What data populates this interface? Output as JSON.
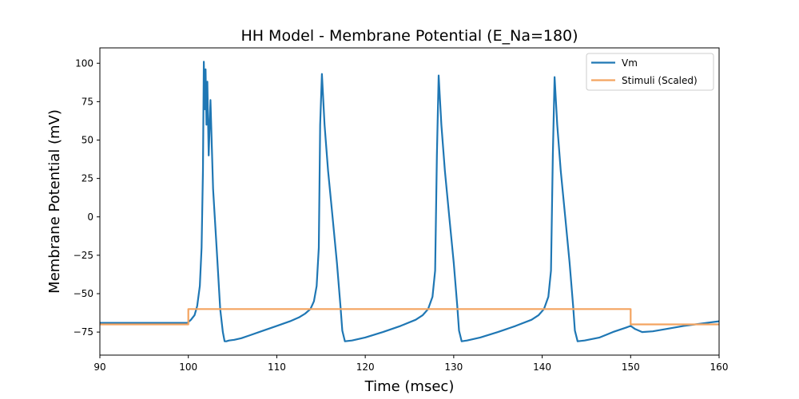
{
  "chart_data": {
    "type": "line",
    "title": "HH Model - Membrane Potential (E_Na=180)",
    "xlabel": "Time (msec)",
    "ylabel": "Membrane Potential (mV)",
    "xlim": [
      90,
      160
    ],
    "ylim": [
      -90,
      110
    ],
    "xticks": [
      90,
      100,
      110,
      120,
      130,
      140,
      150,
      160
    ],
    "yticks": [
      -75,
      -50,
      -25,
      0,
      25,
      50,
      75,
      100
    ],
    "grid": false,
    "legend_position": "top-right",
    "series": [
      {
        "name": "Vm",
        "color": "#1f77b4",
        "x": [
          90,
          99.9,
          100.3,
          100.7,
          101.0,
          101.3,
          101.5,
          101.65,
          101.75,
          101.85,
          101.95,
          102.05,
          102.15,
          102.3,
          102.5,
          102.8,
          103.2,
          103.6,
          103.9,
          104.1,
          104.3,
          104.6,
          105.2,
          106,
          107,
          108.5,
          110,
          111.5,
          112.5,
          113.2,
          113.8,
          114.2,
          114.5,
          114.75,
          114.9,
          115.1,
          115.4,
          115.8,
          116.3,
          116.8,
          117.2,
          117.4,
          117.7,
          118.5,
          120,
          122,
          124,
          125.7,
          126.5,
          127.1,
          127.6,
          127.9,
          128.1,
          128.3,
          128.6,
          129,
          129.5,
          130,
          130.4,
          130.6,
          130.9,
          131.5,
          133,
          135,
          137,
          138.8,
          139.6,
          140.2,
          140.7,
          141.0,
          141.2,
          141.4,
          141.7,
          142.1,
          142.6,
          143.1,
          143.5,
          143.7,
          144,
          144.8,
          146.5,
          148,
          149.5,
          150,
          150.5,
          151.3,
          152.5,
          154,
          156,
          158,
          160
        ],
        "y": [
          -69,
          -69,
          -67,
          -64,
          -58,
          -45,
          -20,
          30,
          101,
          70,
          96,
          60,
          88,
          40,
          76,
          18,
          -20,
          -60,
          -75,
          -81,
          -81,
          -80.5,
          -80,
          -79,
          -77,
          -74,
          -71,
          -68,
          -65.5,
          -63,
          -60,
          -55,
          -45,
          -20,
          60,
          93,
          60,
          30,
          0,
          -30,
          -58,
          -74,
          -81,
          -80.5,
          -78.5,
          -75,
          -71,
          -67,
          -64,
          -60,
          -52,
          -35,
          40,
          92,
          60,
          30,
          0,
          -30,
          -58,
          -74,
          -81,
          -80.5,
          -78.5,
          -75,
          -71,
          -67,
          -64,
          -60,
          -52,
          -35,
          40,
          91,
          60,
          30,
          0,
          -30,
          -58,
          -74,
          -81,
          -80.5,
          -78.5,
          -75,
          -72,
          -71,
          -73,
          -75,
          -74.5,
          -73,
          -71,
          -69.5,
          -68
        ]
      },
      {
        "name": "Stimuli (Scaled)",
        "color": "#f4a460",
        "x": [
          90,
          100,
          100,
          150,
          150,
          160
        ],
        "y": [
          -70,
          -70,
          -60,
          -60,
          -70,
          -70
        ]
      }
    ]
  }
}
